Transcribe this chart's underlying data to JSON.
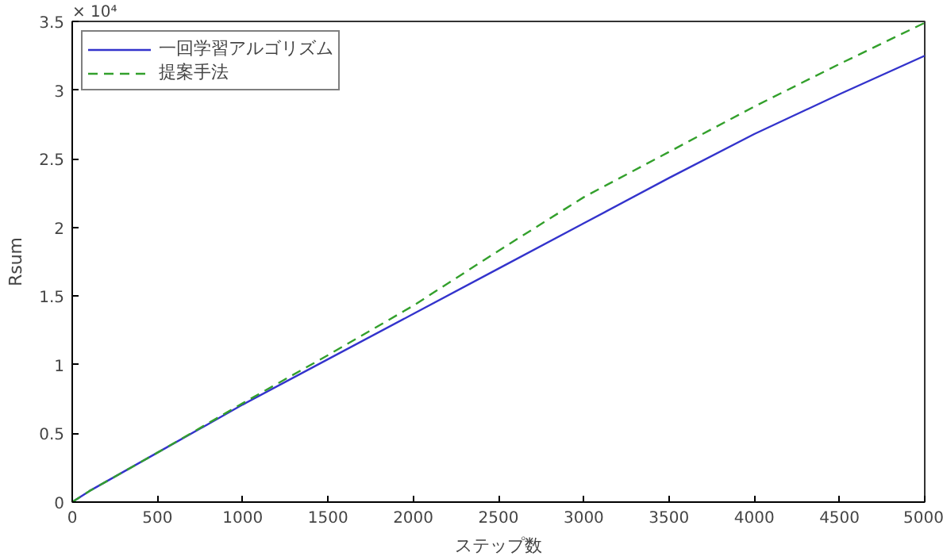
{
  "chart_data": {
    "type": "line",
    "xlabel": "ステップ数",
    "ylabel": "Rsum",
    "annotations": [
      "× 10⁴"
    ],
    "x": [
      0,
      100,
      500,
      1000,
      1500,
      2000,
      2500,
      3000,
      3500,
      4000,
      4500,
      5000
    ],
    "series": [
      {
        "name": "一回学習アルゴリズム",
        "color": "#3333cc",
        "line_style": "solid",
        "values": [
          0,
          0.08,
          0.36,
          0.71,
          1.04,
          1.37,
          1.7,
          2.03,
          2.36,
          2.68,
          2.97,
          3.25
        ]
      },
      {
        "name": "提案手法",
        "color": "#33a02c",
        "line_style": "dashed",
        "values": [
          0,
          0.08,
          0.36,
          0.72,
          1.07,
          1.43,
          1.83,
          2.22,
          2.55,
          2.88,
          3.19,
          3.49
        ]
      }
    ],
    "xlim": [
      0,
      5000
    ],
    "ylim": [
      0,
      3.5
    ],
    "xticks": [
      0,
      500,
      1000,
      1500,
      2000,
      2500,
      3000,
      3500,
      4000,
      4500,
      5000
    ],
    "yticks": [
      0,
      0.5,
      1,
      1.5,
      2,
      2.5,
      3,
      3.5
    ],
    "grid": false,
    "legend": "top left",
    "marker": "none"
  }
}
